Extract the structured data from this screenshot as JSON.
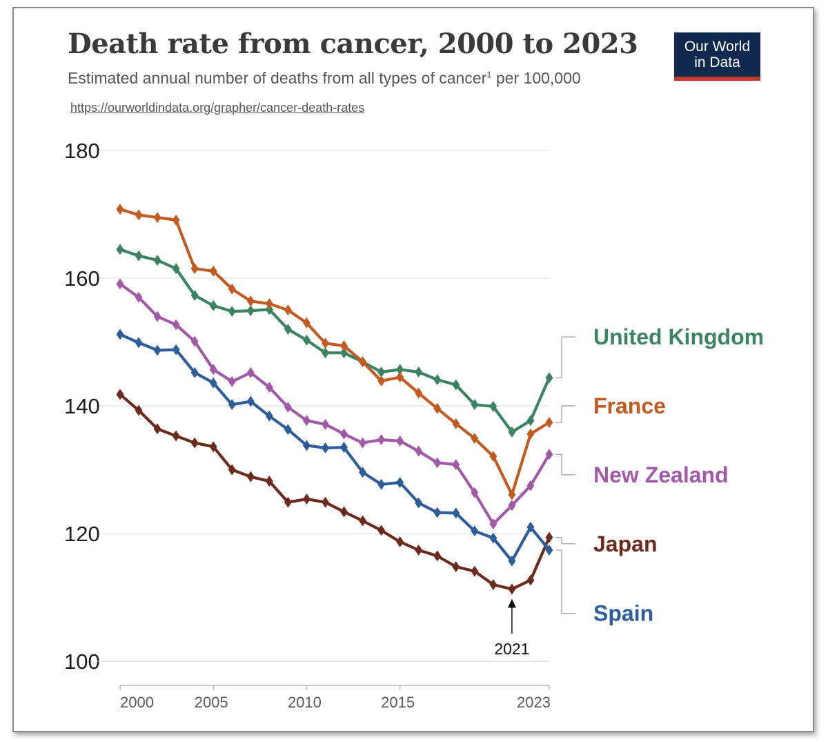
{
  "header": {
    "title": "Death rate from cancer, 2000 to 2023",
    "subtitle_main": "Estimated annual number of deaths from all types of cancer",
    "subtitle_sup": "1",
    "subtitle_end": " per 100,000",
    "url": "https://ourworldindata.org/grapher/cancer-death-rates"
  },
  "logo": {
    "line1": "Our World",
    "line2": "in Data"
  },
  "chart_data": {
    "type": "line",
    "title": "Death rate from cancer, 2000 to 2023",
    "xlabel": "",
    "ylabel": "",
    "xlim": [
      2000,
      2023
    ],
    "ylim": [
      100,
      180
    ],
    "grid": true,
    "y_ticks": [
      100,
      120,
      140,
      160,
      180
    ],
    "x_ticks": [
      {
        "value": 2000,
        "label": "2000"
      },
      {
        "value": 2005,
        "label": "2005"
      },
      {
        "value": 2010,
        "label": "2010"
      },
      {
        "value": 2015,
        "label": "2015"
      },
      {
        "value": 2023,
        "label": "2023"
      }
    ],
    "x": [
      2000,
      2001,
      2002,
      2003,
      2004,
      2005,
      2006,
      2007,
      2008,
      2009,
      2010,
      2011,
      2012,
      2013,
      2014,
      2015,
      2016,
      2017,
      2018,
      2019,
      2020,
      2021,
      2022,
      2023
    ],
    "series": [
      {
        "name": "United Kingdom",
        "color": "#3c8361",
        "label_value": 150.8,
        "values": [
          164.5,
          163.5,
          162.8,
          161.5,
          157.3,
          155.7,
          154.8,
          154.9,
          155.1,
          152.0,
          150.3,
          148.3,
          148.3,
          146.9,
          145.3,
          145.7,
          145.3,
          144.1,
          143.3,
          140.2,
          139.9,
          135.9,
          137.7,
          144.4
        ]
      },
      {
        "name": "France",
        "color": "#c15b21",
        "label_value": 140.0,
        "values": [
          170.8,
          169.9,
          169.5,
          169.1,
          161.5,
          161.1,
          158.3,
          156.4,
          156.0,
          155.0,
          153.0,
          149.8,
          149.4,
          146.9,
          143.9,
          144.5,
          142.0,
          139.6,
          137.2,
          134.9,
          132.1,
          126.1,
          135.6,
          137.4
        ]
      },
      {
        "name": "New Zealand",
        "color": "#a159a8",
        "label_value": 129.2,
        "values": [
          159.1,
          157.0,
          154.0,
          152.7,
          150.1,
          145.7,
          143.8,
          145.2,
          142.9,
          139.8,
          137.7,
          137.1,
          135.6,
          134.2,
          134.7,
          134.5,
          132.9,
          131.1,
          130.8,
          126.4,
          121.5,
          124.4,
          127.5,
          132.4
        ]
      },
      {
        "name": "Japan",
        "color": "#6b2b1f",
        "label_value": 118.4,
        "values": [
          141.8,
          139.3,
          136.4,
          135.3,
          134.2,
          133.6,
          130.0,
          128.9,
          128.2,
          124.9,
          125.4,
          124.9,
          123.4,
          122.0,
          120.5,
          118.7,
          117.4,
          116.5,
          114.8,
          114.1,
          112.0,
          111.3,
          112.7,
          119.4
        ]
      },
      {
        "name": "Spain",
        "color": "#2f5d99",
        "label_value": 107.5,
        "values": [
          151.2,
          149.9,
          148.7,
          148.8,
          145.2,
          143.6,
          140.2,
          140.7,
          138.4,
          136.3,
          133.8,
          133.4,
          133.5,
          129.6,
          127.7,
          128.0,
          124.8,
          123.3,
          123.2,
          120.4,
          119.3,
          115.7,
          121.0,
          117.4
        ]
      }
    ],
    "annotations": [
      {
        "text": "2021",
        "x": 2021,
        "arrow_to_value": 111.3
      }
    ]
  }
}
